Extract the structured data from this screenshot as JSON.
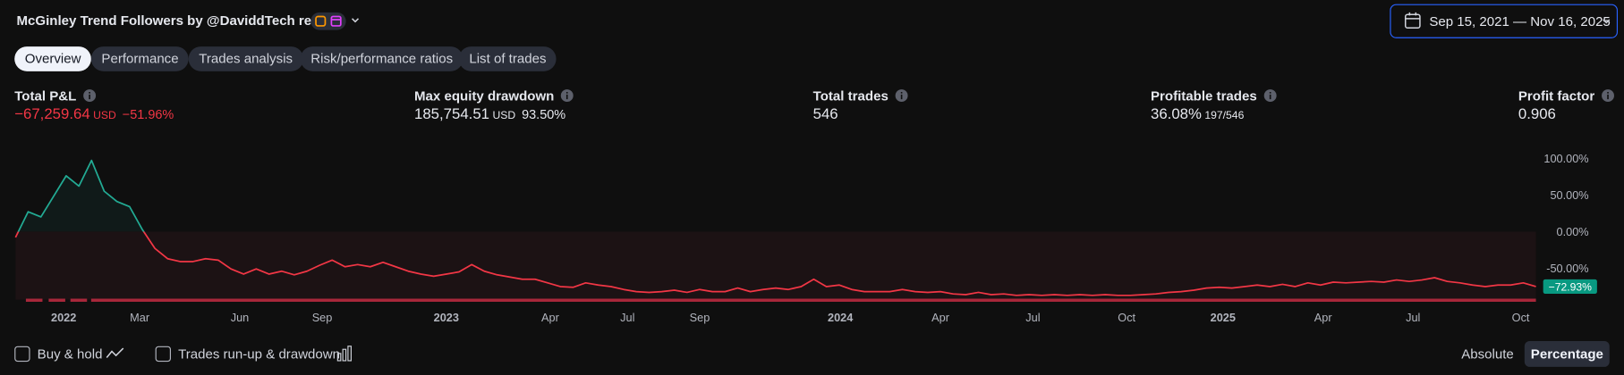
{
  "header": {
    "title": "McGinley Trend Followers by @DaviddTech re…",
    "date_range": "Sep 15, 2021 — Nov 16, 2025"
  },
  "tabs": [
    "Overview",
    "Performance",
    "Trades analysis",
    "Risk/performance ratios",
    "List of trades"
  ],
  "active_tab": 0,
  "metrics": [
    {
      "label": "Total P&L",
      "value": "−67,259.64",
      "unit": "USD",
      "change": "−51.96%",
      "tone": "negative"
    },
    {
      "label": "Max equity drawdown",
      "value": "185,754.51",
      "unit": "USD",
      "change": "93.50%"
    },
    {
      "label": "Total trades",
      "value": "546"
    },
    {
      "label": "Profitable trades",
      "value": "36.08%",
      "detail": "197/546"
    },
    {
      "label": "Profit factor",
      "value": "0.906"
    }
  ],
  "chart_data": {
    "type": "line",
    "values": [
      -8,
      27,
      20,
      48,
      76,
      62,
      97,
      55,
      41,
      34,
      3,
      -23,
      -37,
      -41,
      -41,
      -37,
      -39,
      -51,
      -58,
      -51,
      -58,
      -54,
      -59,
      -54,
      -46,
      -39,
      -48,
      -45,
      -48,
      -42,
      -48,
      -54,
      -58,
      -61,
      -58,
      -55,
      -45,
      -54,
      -59,
      -62,
      -65,
      -65,
      -70,
      -75,
      -76,
      -70,
      -73,
      -75,
      -79,
      -82,
      -83,
      -82,
      -80,
      -83,
      -79,
      -82,
      -82,
      -77,
      -82,
      -79,
      -77,
      -79,
      -75,
      -65,
      -75,
      -73,
      -79,
      -82,
      -82,
      -82,
      -79,
      -82,
      -83,
      -82,
      -85,
      -86,
      -83,
      -86,
      -85,
      -87,
      -86,
      -87,
      -86,
      -87,
      -86,
      -87,
      -86,
      -87,
      -87,
      -86,
      -85,
      -83,
      -82,
      -80,
      -77,
      -76,
      -77,
      -75,
      -73,
      -75,
      -72,
      -75,
      -70,
      -73,
      -69,
      -70,
      -69,
      -68,
      -69,
      -66,
      -68,
      -66,
      -63,
      -68,
      -70,
      -73,
      -75,
      -73,
      -73,
      -70,
      -75
    ],
    "xlim": [
      0,
      120
    ],
    "xticks": [
      {
        "value": 3.8,
        "label": "2022"
      },
      {
        "value": 9.8,
        "label": "Mar"
      },
      {
        "value": 17.7,
        "label": "Jun"
      },
      {
        "value": 24.2,
        "label": "Sep"
      },
      {
        "value": 34.0,
        "label": "2023"
      },
      {
        "value": 42.2,
        "label": "Apr"
      },
      {
        "value": 48.3,
        "label": "Jul"
      },
      {
        "value": 54.0,
        "label": "Sep"
      },
      {
        "value": 65.1,
        "label": "2024"
      },
      {
        "value": 73.0,
        "label": "Apr"
      },
      {
        "value": 80.3,
        "label": "Jul"
      },
      {
        "value": 87.7,
        "label": "Oct"
      },
      {
        "value": 95.3,
        "label": "2025"
      },
      {
        "value": 103.2,
        "label": "Apr"
      },
      {
        "value": 110.3,
        "label": "Jul"
      },
      {
        "value": 118.8,
        "label": "Oct"
      }
    ],
    "ylim": [
      -100,
      110
    ],
    "yticks": [
      {
        "value": 100,
        "label": "100.00%"
      },
      {
        "value": 50,
        "label": "50.00%"
      },
      {
        "value": 0,
        "label": "0.00%"
      },
      {
        "value": -50,
        "label": "-50.00%"
      }
    ],
    "last_value_label": "−72.93%",
    "positive_color": "#22ab94",
    "negative_color": "#f23645"
  },
  "footer": {
    "toggles": [
      "Buy & hold",
      "Trades run-up & drawdown"
    ],
    "modes": [
      "Absolute",
      "Percentage"
    ],
    "active_mode": 1
  }
}
